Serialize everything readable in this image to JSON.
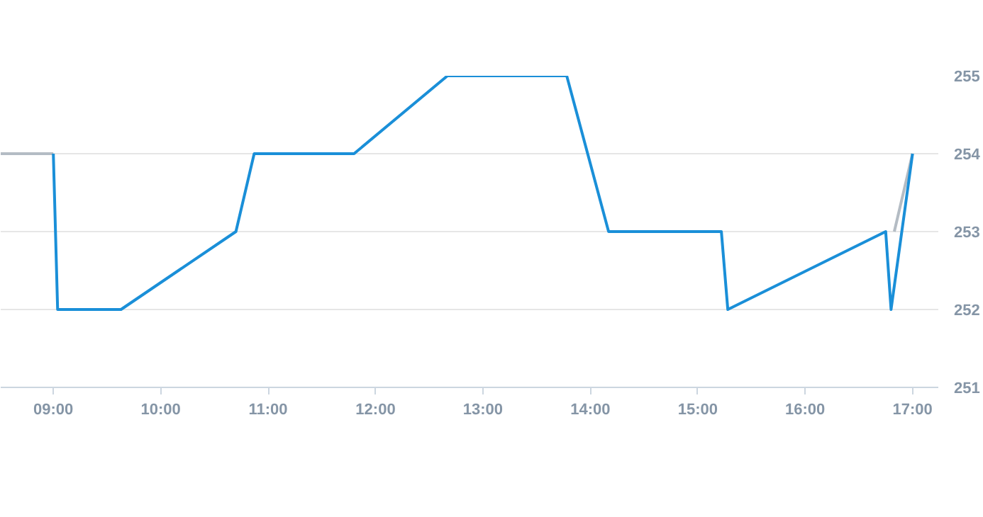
{
  "chart_data": {
    "type": "line",
    "xlim": [
      8.51,
      17.24
    ],
    "ylim": [
      251,
      255
    ],
    "xticks": [
      {
        "value": 9,
        "label": "09:00"
      },
      {
        "value": 10,
        "label": "10:00"
      },
      {
        "value": 11,
        "label": "11:00"
      },
      {
        "value": 12,
        "label": "12:00"
      },
      {
        "value": 13,
        "label": "13:00"
      },
      {
        "value": 14,
        "label": "14:00"
      },
      {
        "value": 15,
        "label": "15:00"
      },
      {
        "value": 16,
        "label": "16:00"
      },
      {
        "value": 17,
        "label": "17:00"
      }
    ],
    "yticks": [
      251,
      252,
      253,
      254,
      255
    ],
    "grid": "y",
    "marker": "none",
    "line_style": "solid",
    "series": [
      {
        "color": "#b4bcc4",
        "x": [
          8.51,
          9.0,
          12.0,
          16.83,
          17.0
        ],
        "values": [
          254,
          254,
          null,
          253,
          254
        ]
      },
      {
        "color": "#1a8fd8",
        "x": [
          9.0,
          9.04,
          9.63,
          10.7,
          10.87,
          11.8,
          12.67,
          13.78,
          14.17,
          15.22,
          15.28,
          16.75,
          16.8,
          17.0
        ],
        "values": [
          254,
          252,
          252,
          253,
          254,
          254,
          255,
          255,
          253,
          253,
          252,
          253,
          252,
          254
        ]
      }
    ]
  }
}
